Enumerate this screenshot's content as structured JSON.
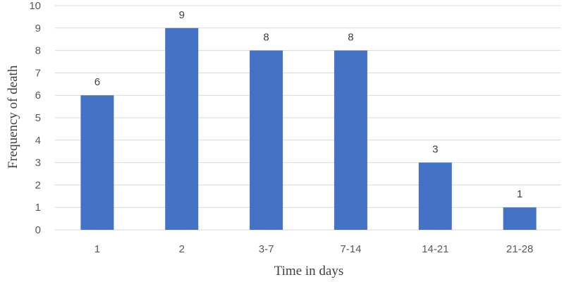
{
  "chart_data": {
    "type": "bar",
    "categories": [
      "1",
      "2",
      "3-7",
      "7-14",
      "14-21",
      "21-28"
    ],
    "values": [
      6,
      9,
      8,
      8,
      3,
      1
    ],
    "xlabel": "Time in days",
    "ylabel": "Frequency of death",
    "ylim": [
      0,
      10
    ],
    "yticks": [
      "0",
      "1",
      "2",
      "3",
      "4",
      "5",
      "6",
      "7",
      "8",
      "9",
      "10"
    ],
    "grid": true,
    "data_labels": true,
    "bar_color": "#4472C4"
  }
}
